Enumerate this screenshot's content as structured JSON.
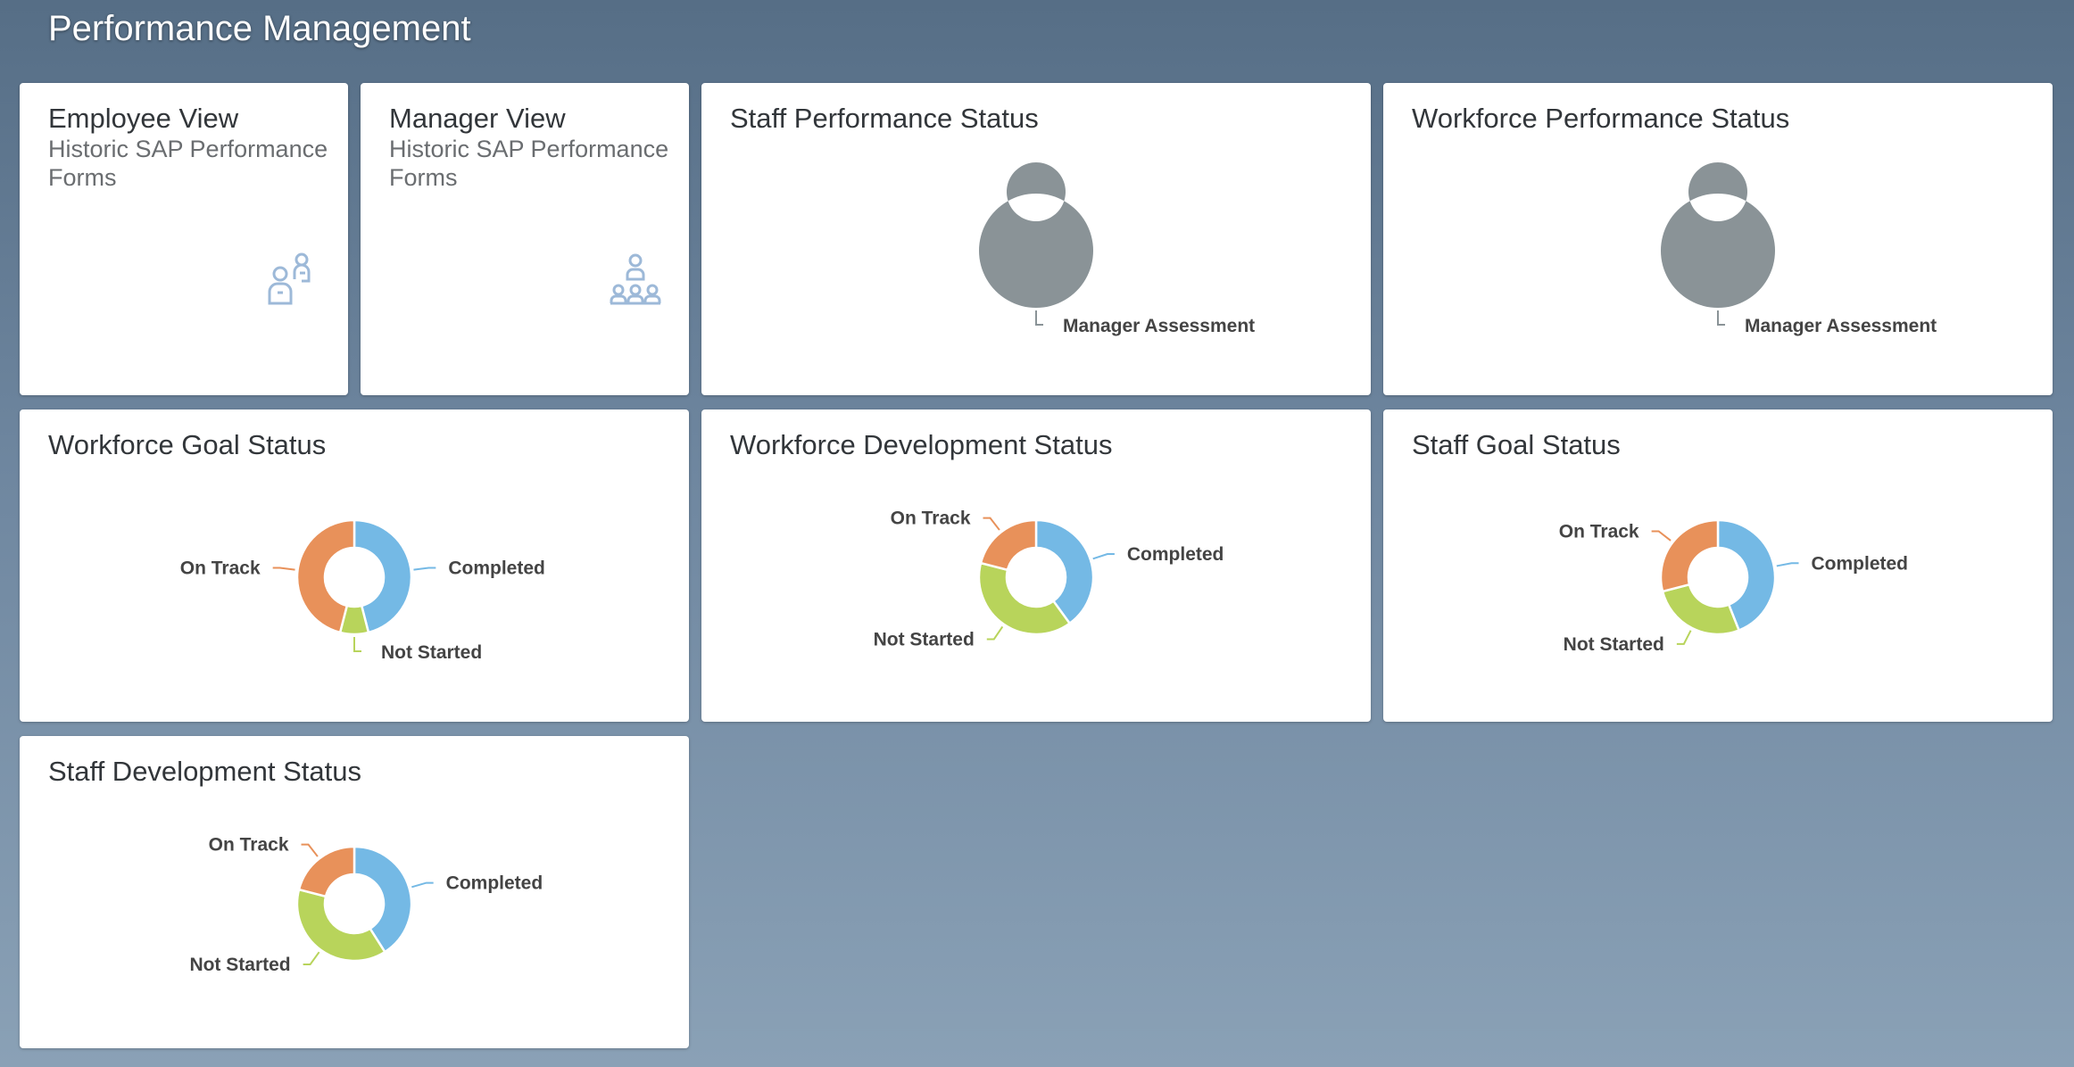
{
  "header": {
    "title": "Performance Management"
  },
  "colors": {
    "completed": "#74b9e5",
    "not_started": "#b8d45b",
    "on_track": "#e8915a",
    "manager_assessment": "#8a9397"
  },
  "launch_tiles": [
    {
      "title": "Employee View",
      "subtitle": "Historic SAP Performance Forms",
      "icon": "employee-forms-icon"
    },
    {
      "title": "Manager View",
      "subtitle": "Historic SAP Performance Forms",
      "icon": "team-hierarchy-icon"
    }
  ],
  "chart_data": [
    {
      "type": "pie",
      "title": "Staff Performance Status",
      "donut": true,
      "slices": [
        {
          "label": "Manager Assessment",
          "value": 100,
          "color": "#8a9397"
        }
      ]
    },
    {
      "type": "pie",
      "title": "Workforce Performance Status",
      "donut": true,
      "slices": [
        {
          "label": "Manager Assessment",
          "value": 100,
          "color": "#8a9397"
        }
      ]
    },
    {
      "type": "pie",
      "title": "Workforce Goal Status",
      "donut": true,
      "slices": [
        {
          "label": "Completed",
          "value": 46,
          "color": "#74b9e5"
        },
        {
          "label": "Not Started",
          "value": 8,
          "color": "#b8d45b"
        },
        {
          "label": "On Track",
          "value": 46,
          "color": "#e8915a"
        }
      ]
    },
    {
      "type": "pie",
      "title": "Workforce Development Status",
      "donut": true,
      "slices": [
        {
          "label": "Completed",
          "value": 40,
          "color": "#74b9e5"
        },
        {
          "label": "Not Started",
          "value": 39,
          "color": "#b8d45b"
        },
        {
          "label": "On Track",
          "value": 21,
          "color": "#e8915a"
        }
      ]
    },
    {
      "type": "pie",
      "title": "Staff Goal Status",
      "donut": true,
      "slices": [
        {
          "label": "Completed",
          "value": 44,
          "color": "#74b9e5"
        },
        {
          "label": "Not Started",
          "value": 27,
          "color": "#b8d45b"
        },
        {
          "label": "On Track",
          "value": 29,
          "color": "#e8915a"
        }
      ]
    },
    {
      "type": "pie",
      "title": "Staff Development Status",
      "donut": true,
      "slices": [
        {
          "label": "Completed",
          "value": 41,
          "color": "#74b9e5"
        },
        {
          "label": "Not Started",
          "value": 38,
          "color": "#b8d45b"
        },
        {
          "label": "On Track",
          "value": 21,
          "color": "#e8915a"
        }
      ]
    }
  ]
}
